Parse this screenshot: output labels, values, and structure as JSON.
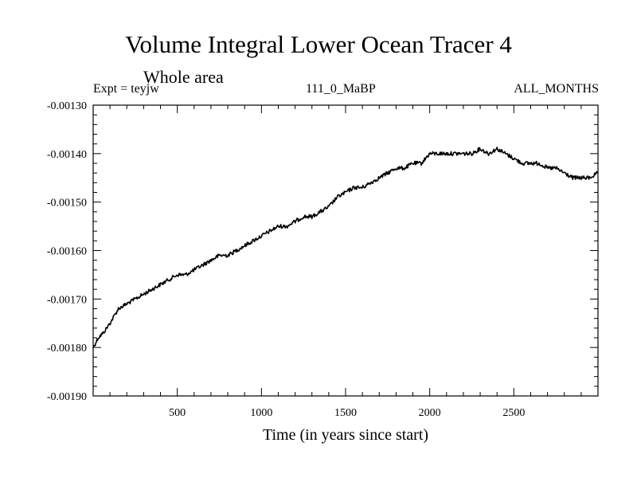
{
  "header": {
    "title": "Volume Integral Lower Ocean Tracer 4",
    "subtitle": "Whole area",
    "expt_label": "Expt = teyjw",
    "run_label": "111_0_MaBP",
    "period_label": "ALL_MONTHS"
  },
  "chart_data": {
    "type": "line",
    "title": "Volume Integral Lower Ocean Tracer 4",
    "subtitle": "Whole area",
    "xlabel": "Time (in years since start)",
    "ylabel": "",
    "xlim": [
      0,
      3000
    ],
    "ylim": [
      -0.0019,
      -0.0013
    ],
    "xticks": [
      500,
      1000,
      1500,
      2000,
      2500
    ],
    "xtick_labels": [
      "500",
      "1000",
      "1500",
      "2000",
      "2500"
    ],
    "yticks": [
      -0.0013,
      -0.0014,
      -0.0015,
      -0.0016,
      -0.0017,
      -0.0018,
      -0.0019
    ],
    "ytick_labels": [
      "-0.00130",
      "-0.00140",
      "-0.00150",
      "-0.00160",
      "-0.00170",
      "-0.00180",
      "-0.00190"
    ],
    "grid": false,
    "series": [
      {
        "name": "teyjw",
        "color": "#000000",
        "x": [
          0,
          30,
          60,
          100,
          150,
          200,
          250,
          300,
          350,
          400,
          450,
          500,
          550,
          600,
          650,
          700,
          750,
          800,
          850,
          900,
          950,
          1000,
          1050,
          1100,
          1150,
          1200,
          1250,
          1300,
          1350,
          1400,
          1450,
          1500,
          1550,
          1600,
          1650,
          1700,
          1750,
          1800,
          1850,
          1900,
          1950,
          2000,
          2050,
          2100,
          2150,
          2200,
          2250,
          2300,
          2350,
          2400,
          2450,
          2500,
          2550,
          2600,
          2650,
          2700,
          2750,
          2800,
          2850,
          2900,
          2950,
          3000
        ],
        "y": [
          -0.0018,
          -0.00178,
          -0.00177,
          -0.00175,
          -0.00172,
          -0.00171,
          -0.0017,
          -0.00169,
          -0.00168,
          -0.00167,
          -0.00166,
          -0.00165,
          -0.00165,
          -0.00164,
          -0.00163,
          -0.00162,
          -0.00161,
          -0.00161,
          -0.0016,
          -0.00159,
          -0.00158,
          -0.00157,
          -0.00156,
          -0.00155,
          -0.00155,
          -0.00154,
          -0.00153,
          -0.00153,
          -0.00152,
          -0.00151,
          -0.00149,
          -0.00148,
          -0.00147,
          -0.00147,
          -0.00146,
          -0.00145,
          -0.00144,
          -0.00143,
          -0.00143,
          -0.00142,
          -0.00142,
          -0.0014,
          -0.0014,
          -0.0014,
          -0.0014,
          -0.0014,
          -0.0014,
          -0.00139,
          -0.0014,
          -0.00139,
          -0.0014,
          -0.00141,
          -0.00142,
          -0.00142,
          -0.00142,
          -0.00143,
          -0.00143,
          -0.00144,
          -0.00145,
          -0.00145,
          -0.00145,
          -0.00144
        ]
      }
    ]
  }
}
